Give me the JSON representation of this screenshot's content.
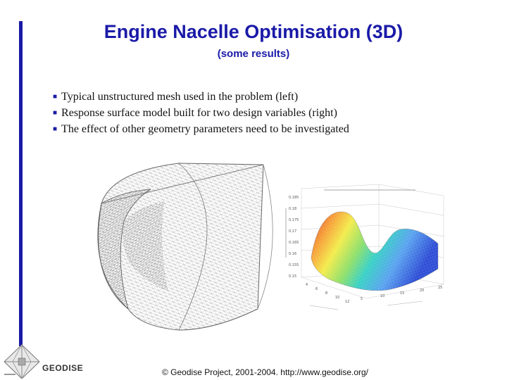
{
  "slide": {
    "title": "Engine Nacelle Optimisation (3D)",
    "subtitle": "(some results)",
    "bullets": [
      "Typical unstructured mesh used in the problem (left)",
      "Response surface model built for two design variables (right)",
      "The effect of other geometry parameters need to be investigated"
    ],
    "bullet_icon": "square-bullet",
    "footer": "© Geodise Project, 2001-2004. http://www.geodise.org/",
    "logo_text": "GEODISE",
    "accent_color": "#1a1aa8"
  },
  "figures": {
    "mesh": {
      "icon": "nacelle-mesh-image"
    },
    "surface": {
      "icon": "response-surface-plot",
      "z_ticks": [
        "0.185",
        "0.18",
        "0.175",
        "0.17",
        "0.165",
        "0.16",
        "0.155",
        "0.15"
      ],
      "x_ticks": [
        "4",
        "6",
        "8",
        "10",
        "12"
      ],
      "y_ticks": [
        "5",
        "10",
        "15",
        "20",
        "25"
      ]
    }
  }
}
